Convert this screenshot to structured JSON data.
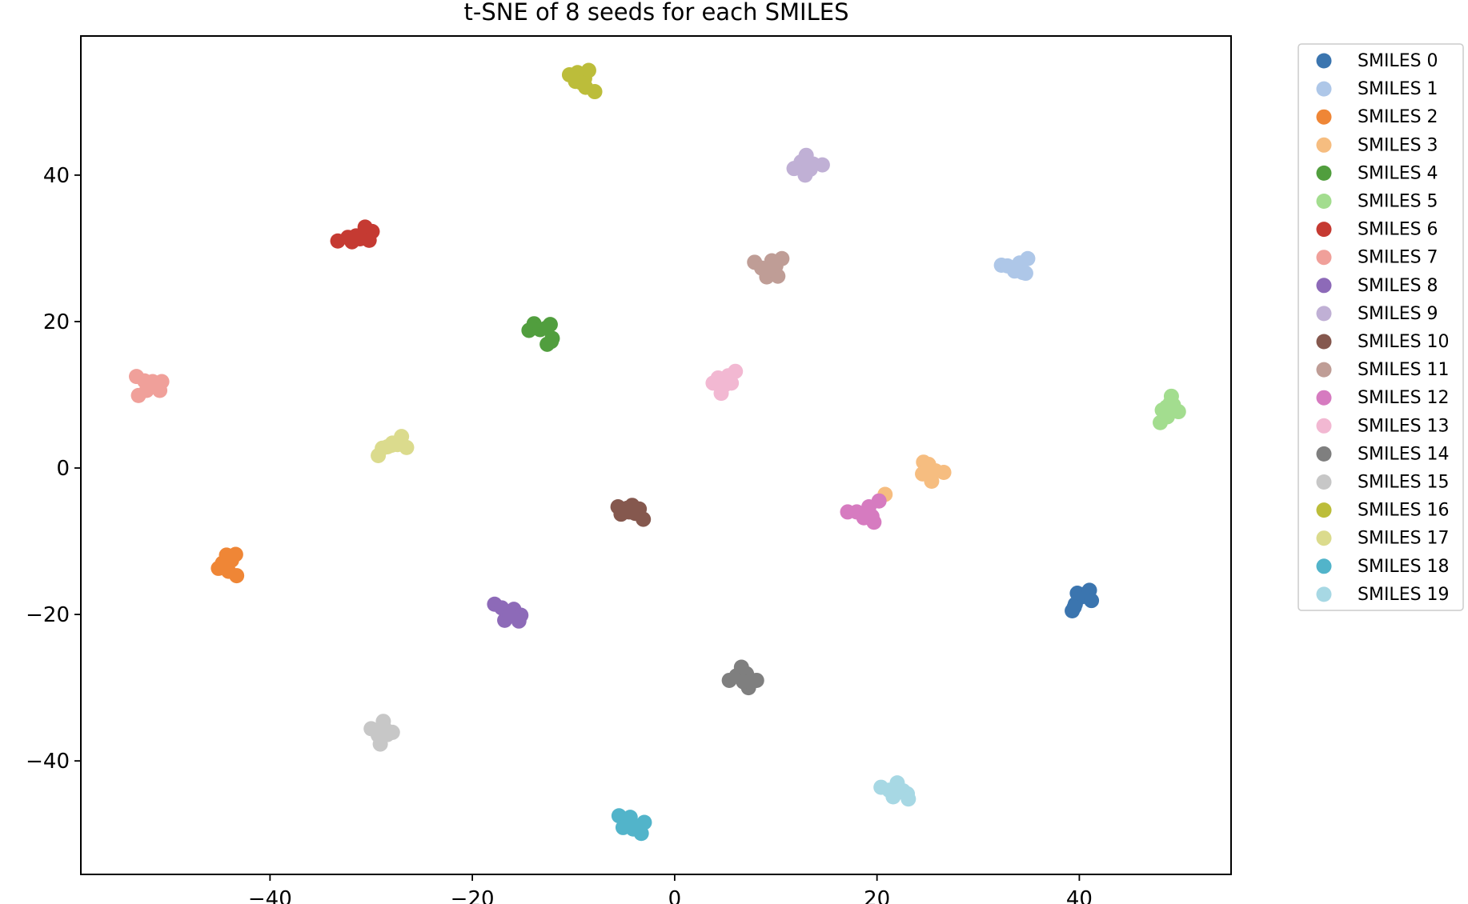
{
  "chart_data": {
    "type": "scatter",
    "title": "t-SNE of 8 seeds for each SMILES",
    "xlabel": "",
    "ylabel": "",
    "xlim": [
      -58.7,
      55.0
    ],
    "ylim": [
      -55.5,
      59.0
    ],
    "xticks": [
      -40,
      -20,
      0,
      20,
      40
    ],
    "yticks": [
      -40,
      -20,
      0,
      20,
      40
    ],
    "tick_labels_x": [
      "−40",
      "−20",
      "0",
      "20",
      "40"
    ],
    "tick_labels_y": [
      "−40",
      "−20",
      "0",
      "20",
      "40"
    ],
    "grid": false,
    "legend_position": "outside-upper-right",
    "series": [
      {
        "name": "SMILES 0",
        "color": "#3b75af",
        "points": [
          [
            39.3,
            -19.5
          ],
          [
            39.6,
            -18.6
          ],
          [
            39.8,
            -17.1
          ],
          [
            40.2,
            -17.6
          ],
          [
            40.6,
            -17.2
          ],
          [
            41.0,
            -16.7
          ],
          [
            41.2,
            -18.1
          ],
          [
            39.5,
            -19.0
          ]
        ]
      },
      {
        "name": "SMILES 1",
        "color": "#aec7e8",
        "points": [
          [
            32.3,
            27.7
          ],
          [
            32.9,
            27.6
          ],
          [
            33.6,
            26.9
          ],
          [
            34.1,
            28.0
          ],
          [
            34.4,
            26.7
          ],
          [
            34.9,
            28.6
          ],
          [
            34.7,
            26.6
          ],
          [
            33.5,
            27.3
          ]
        ]
      },
      {
        "name": "SMILES 2",
        "color": "#ef8636",
        "points": [
          [
            -45.1,
            -13.7
          ],
          [
            -44.7,
            -13.0
          ],
          [
            -44.3,
            -11.9
          ],
          [
            -43.8,
            -12.6
          ],
          [
            -43.4,
            -11.8
          ],
          [
            -43.3,
            -14.7
          ],
          [
            -44.1,
            -14.1
          ],
          [
            -44.6,
            -13.4
          ]
        ]
      },
      {
        "name": "SMILES 3",
        "color": "#f6bd80",
        "points": [
          [
            20.8,
            -3.6
          ],
          [
            24.6,
            0.8
          ],
          [
            25.1,
            0.5
          ],
          [
            24.5,
            -0.8
          ],
          [
            25.4,
            -1.8
          ],
          [
            25.8,
            -0.4
          ],
          [
            26.6,
            -0.6
          ],
          [
            25.0,
            -0.2
          ]
        ]
      },
      {
        "name": "SMILES 4",
        "color": "#519e3e",
        "points": [
          [
            -14.4,
            18.8
          ],
          [
            -13.9,
            19.7
          ],
          [
            -13.3,
            18.9
          ],
          [
            -12.7,
            19.1
          ],
          [
            -12.3,
            19.6
          ],
          [
            -12.1,
            17.7
          ],
          [
            -12.6,
            16.9
          ],
          [
            -12.2,
            17.3
          ]
        ]
      },
      {
        "name": "SMILES 5",
        "color": "#a3dd8f",
        "points": [
          [
            48.0,
            6.2
          ],
          [
            48.2,
            7.9
          ],
          [
            48.6,
            8.3
          ],
          [
            49.1,
            9.8
          ],
          [
            49.3,
            8.6
          ],
          [
            49.8,
            7.7
          ],
          [
            48.7,
            7.0
          ],
          [
            49.0,
            8.9
          ]
        ]
      },
      {
        "name": "SMILES 6",
        "color": "#c53a32",
        "points": [
          [
            -33.3,
            31.0
          ],
          [
            -32.3,
            31.5
          ],
          [
            -31.9,
            30.9
          ],
          [
            -31.1,
            31.3
          ],
          [
            -30.6,
            32.9
          ],
          [
            -29.9,
            32.3
          ],
          [
            -30.2,
            31.1
          ],
          [
            -31.5,
            31.7
          ]
        ]
      },
      {
        "name": "SMILES 7",
        "color": "#f0a09a",
        "points": [
          [
            -53.2,
            12.5
          ],
          [
            -52.4,
            11.9
          ],
          [
            -51.6,
            11.8
          ],
          [
            -50.7,
            11.8
          ],
          [
            -50.9,
            10.6
          ],
          [
            -52.2,
            10.6
          ],
          [
            -53.0,
            9.9
          ],
          [
            -51.8,
            11.2
          ]
        ]
      },
      {
        "name": "SMILES 8",
        "color": "#8d6ab8",
        "points": [
          [
            -17.8,
            -18.6
          ],
          [
            -17.1,
            -19.1
          ],
          [
            -16.5,
            -19.7
          ],
          [
            -16.8,
            -20.8
          ],
          [
            -15.9,
            -19.3
          ],
          [
            -15.2,
            -20.1
          ],
          [
            -15.4,
            -20.9
          ],
          [
            -16.3,
            -20.2
          ]
        ]
      },
      {
        "name": "SMILES 9",
        "color": "#c0b0d5",
        "points": [
          [
            11.8,
            40.9
          ],
          [
            12.5,
            41.8
          ],
          [
            13.0,
            42.7
          ],
          [
            13.4,
            40.8
          ],
          [
            12.9,
            40.0
          ],
          [
            13.7,
            41.5
          ],
          [
            14.6,
            41.4
          ],
          [
            13.3,
            41.2
          ]
        ]
      },
      {
        "name": "SMILES 10",
        "color": "#85584e",
        "points": [
          [
            -5.6,
            -5.3
          ],
          [
            -5.3,
            -6.3
          ],
          [
            -4.7,
            -5.5
          ],
          [
            -4.2,
            -5.1
          ],
          [
            -3.9,
            -6.2
          ],
          [
            -3.5,
            -5.6
          ],
          [
            -3.1,
            -7.0
          ],
          [
            -4.5,
            -6.0
          ]
        ]
      },
      {
        "name": "SMILES 11",
        "color": "#bf9d96",
        "points": [
          [
            7.9,
            28.1
          ],
          [
            8.6,
            27.3
          ],
          [
            9.1,
            26.1
          ],
          [
            9.6,
            28.3
          ],
          [
            10.0,
            27.6
          ],
          [
            10.6,
            28.6
          ],
          [
            10.2,
            26.2
          ],
          [
            9.2,
            27.0
          ]
        ]
      },
      {
        "name": "SMILES 12",
        "color": "#d67bc0",
        "points": [
          [
            17.1,
            -6.0
          ],
          [
            18.0,
            -6.0
          ],
          [
            18.7,
            -6.8
          ],
          [
            19.2,
            -5.3
          ],
          [
            19.5,
            -6.6
          ],
          [
            19.7,
            -7.4
          ],
          [
            20.2,
            -4.5
          ],
          [
            19.0,
            -6.2
          ]
        ]
      },
      {
        "name": "SMILES 13",
        "color": "#f2b8d2",
        "points": [
          [
            3.8,
            11.6
          ],
          [
            4.3,
            12.3
          ],
          [
            4.9,
            11.9
          ],
          [
            4.6,
            10.2
          ],
          [
            5.3,
            12.6
          ],
          [
            5.6,
            11.6
          ],
          [
            6.0,
            13.2
          ],
          [
            5.0,
            11.4
          ]
        ]
      },
      {
        "name": "SMILES 14",
        "color": "#7f7f7f",
        "points": [
          [
            5.4,
            -29.0
          ],
          [
            6.1,
            -28.4
          ],
          [
            6.6,
            -27.2
          ],
          [
            7.1,
            -28.1
          ],
          [
            7.5,
            -28.9
          ],
          [
            8.1,
            -29.0
          ],
          [
            7.3,
            -30.0
          ],
          [
            6.8,
            -29.2
          ]
        ]
      },
      {
        "name": "SMILES 15",
        "color": "#c7c7c7",
        "points": [
          [
            -30.0,
            -35.6
          ],
          [
            -29.3,
            -36.5
          ],
          [
            -28.8,
            -34.6
          ],
          [
            -29.1,
            -37.7
          ],
          [
            -28.4,
            -36.4
          ],
          [
            -27.9,
            -36.1
          ],
          [
            -28.6,
            -35.7
          ],
          [
            -29.5,
            -35.9
          ]
        ]
      },
      {
        "name": "SMILES 16",
        "color": "#bcbd3a",
        "points": [
          [
            -10.4,
            53.7
          ],
          [
            -9.6,
            54.0
          ],
          [
            -8.9,
            53.2
          ],
          [
            -8.5,
            54.3
          ],
          [
            -9.8,
            52.8
          ],
          [
            -8.8,
            52.0
          ],
          [
            -7.9,
            51.4
          ],
          [
            -9.2,
            52.6
          ]
        ]
      },
      {
        "name": "SMILES 17",
        "color": "#dbdb8d",
        "points": [
          [
            -29.3,
            1.7
          ],
          [
            -28.9,
            2.7
          ],
          [
            -28.4,
            2.9
          ],
          [
            -27.9,
            3.4
          ],
          [
            -27.4,
            3.2
          ],
          [
            -27.0,
            4.3
          ],
          [
            -26.5,
            2.8
          ],
          [
            -28.0,
            3.1
          ]
        ]
      },
      {
        "name": "SMILES 18",
        "color": "#52b4ca",
        "points": [
          [
            -5.5,
            -47.5
          ],
          [
            -4.9,
            -48.1
          ],
          [
            -4.4,
            -47.7
          ],
          [
            -5.1,
            -49.1
          ],
          [
            -3.8,
            -48.9
          ],
          [
            -3.3,
            -49.9
          ],
          [
            -3.0,
            -48.4
          ],
          [
            -4.1,
            -49.3
          ]
        ]
      },
      {
        "name": "SMILES 19",
        "color": "#a7d8e4",
        "points": [
          [
            20.4,
            -43.6
          ],
          [
            21.2,
            -44.0
          ],
          [
            21.6,
            -44.9
          ],
          [
            22.0,
            -43.0
          ],
          [
            22.6,
            -44.1
          ],
          [
            23.0,
            -44.5
          ],
          [
            23.1,
            -45.2
          ],
          [
            21.9,
            -44.4
          ]
        ]
      }
    ]
  }
}
